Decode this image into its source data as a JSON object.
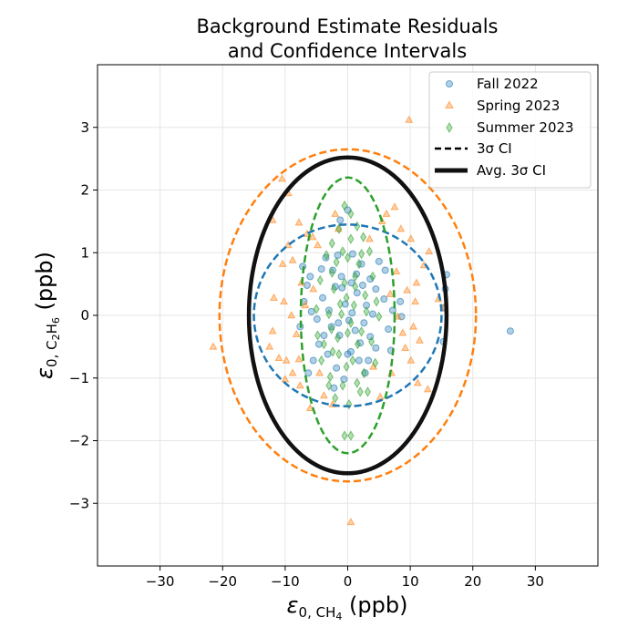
{
  "chart_data": {
    "type": "scatter",
    "title_lines": [
      "Background Estimate Residuals",
      "and Confidence Intervals"
    ],
    "xlabel": {
      "symbol": "ε",
      "sub": "0, CH",
      "subsub": "4",
      "unit": " (ppb)"
    },
    "ylabel": {
      "symbol": "ε",
      "sub": "0, C",
      "subsub1": "2",
      "mid": "H",
      "subsub2": "6",
      "unit": " (ppb)"
    },
    "xlim": [
      -40,
      40
    ],
    "ylim": [
      -4,
      4
    ],
    "xticks": [
      -30,
      -20,
      -10,
      0,
      10,
      20,
      30
    ],
    "xtick_labels": [
      "−30",
      "−20",
      "−10",
      "0",
      "10",
      "20",
      "30"
    ],
    "yticks": [
      -3,
      -2,
      -1,
      0,
      1,
      2,
      3
    ],
    "ytick_labels": [
      "−3",
      "−2",
      "−1",
      "0",
      "1",
      "2",
      "3"
    ],
    "grid": true,
    "legend_position": "top-right",
    "legend": [
      {
        "label": "Fall 2022",
        "kind": "marker-circle",
        "color": "#1f77b4"
      },
      {
        "label": "Spring 2023",
        "kind": "marker-triangle",
        "color": "#ff7f0e"
      },
      {
        "label": "Summer 2023",
        "kind": "marker-diamond",
        "color": "#2ca02c"
      },
      {
        "label": "3σ CI",
        "kind": "line-dashed",
        "color": "#000000"
      },
      {
        "label": "Avg. 3σ CI",
        "kind": "line-solid-thick",
        "color": "#000000"
      }
    ],
    "ellipses": [
      {
        "series": "Fall 2022",
        "style": "dashed",
        "color": "#1f77b4",
        "cx": 0,
        "cy": 0,
        "rx": 15,
        "ry": 1.45
      },
      {
        "series": "Spring 2023",
        "style": "dashed",
        "color": "#ff7f0e",
        "cx": 0,
        "cy": 0,
        "rx": 20.5,
        "ry": 2.65
      },
      {
        "series": "Summer 2023",
        "style": "dashed",
        "color": "#2ca02c",
        "cx": 0,
        "cy": 0,
        "rx": 7.5,
        "ry": 2.2
      },
      {
        "series": "Avg.",
        "style": "solid-thick",
        "color": "#111111",
        "cx": 0,
        "cy": 0,
        "rx": 15.8,
        "ry": 2.52
      }
    ],
    "series": [
      {
        "name": "Fall 2022",
        "marker": "circle",
        "color": "#1f77b4",
        "points": [
          [
            26.0,
            -0.25
          ],
          [
            0,
            1.68
          ],
          [
            -1.2,
            1.52
          ],
          [
            15.8,
            0.65
          ],
          [
            15.6,
            0.42
          ],
          [
            15.4,
            0.12
          ],
          [
            15.3,
            -0.42
          ],
          [
            8.4,
            0.22
          ],
          [
            8.6,
            -0.02
          ],
          [
            6.0,
            0.72
          ],
          [
            -4.2,
            0.74
          ],
          [
            -6.0,
            0.62
          ],
          [
            -4.0,
            0.28
          ],
          [
            -3.0,
            0.08
          ],
          [
            -2.0,
            0.46
          ],
          [
            -1.0,
            0.62
          ],
          [
            0.6,
            0.52
          ],
          [
            1.5,
            0.36
          ],
          [
            2.4,
            0.48
          ],
          [
            3.6,
            0.58
          ],
          [
            4.5,
            0.42
          ],
          [
            -2.6,
            -0.18
          ],
          [
            -1.3,
            -0.32
          ],
          [
            0.2,
            -0.08
          ],
          [
            1.2,
            -0.24
          ],
          [
            2.6,
            -0.12
          ],
          [
            3.6,
            -0.34
          ],
          [
            4.5,
            -0.52
          ],
          [
            -4.6,
            -0.46
          ],
          [
            -5.5,
            -0.72
          ],
          [
            -3.2,
            -0.62
          ],
          [
            -1.8,
            -0.84
          ],
          [
            -0.6,
            -1.02
          ],
          [
            0.5,
            -0.58
          ],
          [
            1.8,
            -0.72
          ],
          [
            2.8,
            -0.92
          ],
          [
            -6.5,
            0.48
          ],
          [
            -7.0,
            0.22
          ],
          [
            -7.6,
            -0.18
          ],
          [
            6.5,
            -0.22
          ],
          [
            7.2,
            0.08
          ],
          [
            5.8,
            0.26
          ],
          [
            -3.5,
            0.92
          ],
          [
            -1.6,
            0.96
          ],
          [
            0.8,
            0.98
          ],
          [
            2.2,
            0.82
          ],
          [
            -0.4,
            0.18
          ],
          [
            0.7,
            0.04
          ],
          [
            -1.5,
            -0.12
          ],
          [
            3.0,
            0.16
          ],
          [
            -4.9,
            -0.06
          ],
          [
            -5.8,
            0.06
          ],
          [
            4.0,
            0.02
          ],
          [
            6.9,
            -0.56
          ],
          [
            -6.3,
            -0.92
          ],
          [
            -2.2,
            -1.16
          ],
          [
            0.0,
            -0.62
          ],
          [
            1.4,
            0.66
          ],
          [
            -2.4,
            0.72
          ],
          [
            5.0,
            0.86
          ],
          [
            3.3,
            -0.72
          ],
          [
            -0.9,
            0.44
          ],
          [
            -3.8,
            -0.32
          ],
          [
            2.0,
            -0.44
          ],
          [
            -7.2,
            0.78
          ]
        ]
      },
      {
        "name": "Spring 2023",
        "marker": "triangle",
        "color": "#ff7f0e",
        "points": [
          [
            9.8,
            3.12
          ],
          [
            0.5,
            -3.3
          ],
          [
            -21.5,
            -0.5
          ],
          [
            -10.5,
            2.18
          ],
          [
            -9.5,
            1.95
          ],
          [
            -7.8,
            1.48
          ],
          [
            -6.5,
            1.3
          ],
          [
            -5.6,
            1.25
          ],
          [
            -4.8,
            1.12
          ],
          [
            7.5,
            1.73
          ],
          [
            6.2,
            1.62
          ],
          [
            5.5,
            1.5
          ],
          [
            8.5,
            1.38
          ],
          [
            10.1,
            1.22
          ],
          [
            10.8,
            0.22
          ],
          [
            10.5,
            -0.18
          ],
          [
            -10.2,
            0.22
          ],
          [
            -11.8,
            0.28
          ],
          [
            -12.0,
            -0.25
          ],
          [
            -12.5,
            -0.5
          ],
          [
            -11.0,
            -0.68
          ],
          [
            -9.8,
            -0.72
          ],
          [
            -8.8,
            -0.92
          ],
          [
            -7.6,
            -1.12
          ],
          [
            -6.0,
            -1.48
          ],
          [
            12.8,
            -1.18
          ],
          [
            11.2,
            -1.08
          ],
          [
            10.1,
            -0.72
          ],
          [
            9.2,
            -0.52
          ],
          [
            7.0,
            -0.92
          ],
          [
            -10.4,
            0.82
          ],
          [
            -8.8,
            0.88
          ],
          [
            -7.4,
            0.52
          ],
          [
            -8.2,
            -0.3
          ],
          [
            -9.0,
            0.0
          ],
          [
            9.5,
            0.4
          ],
          [
            11.0,
            0.52
          ],
          [
            14.5,
            0.26
          ],
          [
            15.3,
            0.12
          ],
          [
            -3.8,
            -1.28
          ],
          [
            -2.4,
            -1.42
          ],
          [
            8.8,
            -0.28
          ],
          [
            -9.5,
            1.12
          ],
          [
            11.5,
            -0.4
          ],
          [
            -6.8,
            0.16
          ],
          [
            7.8,
            0.7
          ],
          [
            -4.5,
            -0.92
          ],
          [
            3.5,
            1.22
          ],
          [
            -1.5,
            1.38
          ],
          [
            -12.0,
            1.52
          ],
          [
            12.2,
            0.8
          ],
          [
            8.0,
            -0.02
          ],
          [
            -7.8,
            -0.7
          ],
          [
            5.2,
            -1.3
          ],
          [
            -10.0,
            -1.02
          ],
          [
            13.0,
            1.02
          ],
          [
            -2.0,
            1.62
          ],
          [
            6.8,
            0.34
          ],
          [
            -5.5,
            0.42
          ],
          [
            4.1,
            -0.82
          ]
        ]
      },
      {
        "name": "Summer 2023",
        "marker": "diamond",
        "color": "#2ca02c",
        "points": [
          [
            -0.5,
            1.75
          ],
          [
            0.5,
            1.62
          ],
          [
            -1.4,
            1.38
          ],
          [
            1.5,
            1.42
          ],
          [
            2.5,
            1.25
          ],
          [
            -2.5,
            1.15
          ],
          [
            3.5,
            1.02
          ],
          [
            -3.4,
            0.96
          ],
          [
            -1.8,
            0.85
          ],
          [
            0.0,
            0.92
          ],
          [
            1.8,
            0.82
          ],
          [
            4.0,
            0.62
          ],
          [
            -4.4,
            0.56
          ],
          [
            -2.2,
            0.42
          ],
          [
            -0.5,
            0.52
          ],
          [
            1.2,
            0.46
          ],
          [
            2.8,
            0.32
          ],
          [
            -1.0,
            0.02
          ],
          [
            0.5,
            -0.12
          ],
          [
            -2.6,
            -0.22
          ],
          [
            2.2,
            -0.26
          ],
          [
            3.8,
            -0.42
          ],
          [
            -3.8,
            -0.46
          ],
          [
            -1.4,
            -0.62
          ],
          [
            0.8,
            -0.72
          ],
          [
            2.6,
            -0.92
          ],
          [
            -2.8,
            -0.98
          ],
          [
            -0.8,
            -1.12
          ],
          [
            1.5,
            -1.08
          ],
          [
            -2.0,
            -1.32
          ],
          [
            0.2,
            -1.42
          ],
          [
            -0.5,
            -1.92
          ],
          [
            0.5,
            -1.92
          ],
          [
            -0.2,
            0.28
          ],
          [
            -1.2,
            0.18
          ],
          [
            1.0,
            0.16
          ],
          [
            -3.0,
            0.02
          ],
          [
            3.0,
            0.06
          ],
          [
            -5.0,
            0.1
          ],
          [
            5.0,
            -0.02
          ],
          [
            4.6,
            0.22
          ],
          [
            -4.8,
            -0.32
          ],
          [
            -1.6,
            -0.36
          ],
          [
            1.6,
            -0.46
          ],
          [
            -0.2,
            -0.82
          ],
          [
            2.2,
            0.98
          ],
          [
            -2.5,
            0.68
          ],
          [
            0.5,
            1.22
          ],
          [
            -0.8,
            1.02
          ],
          [
            4.4,
            -0.76
          ],
          [
            -4.2,
            -0.72
          ],
          [
            3.2,
            -1.22
          ],
          [
            -3.0,
            -1.12
          ],
          [
            1.2,
            0.62
          ],
          [
            -2.4,
            -0.58
          ],
          [
            0.0,
            -0.28
          ],
          [
            2.0,
            -1.22
          ]
        ]
      }
    ]
  }
}
